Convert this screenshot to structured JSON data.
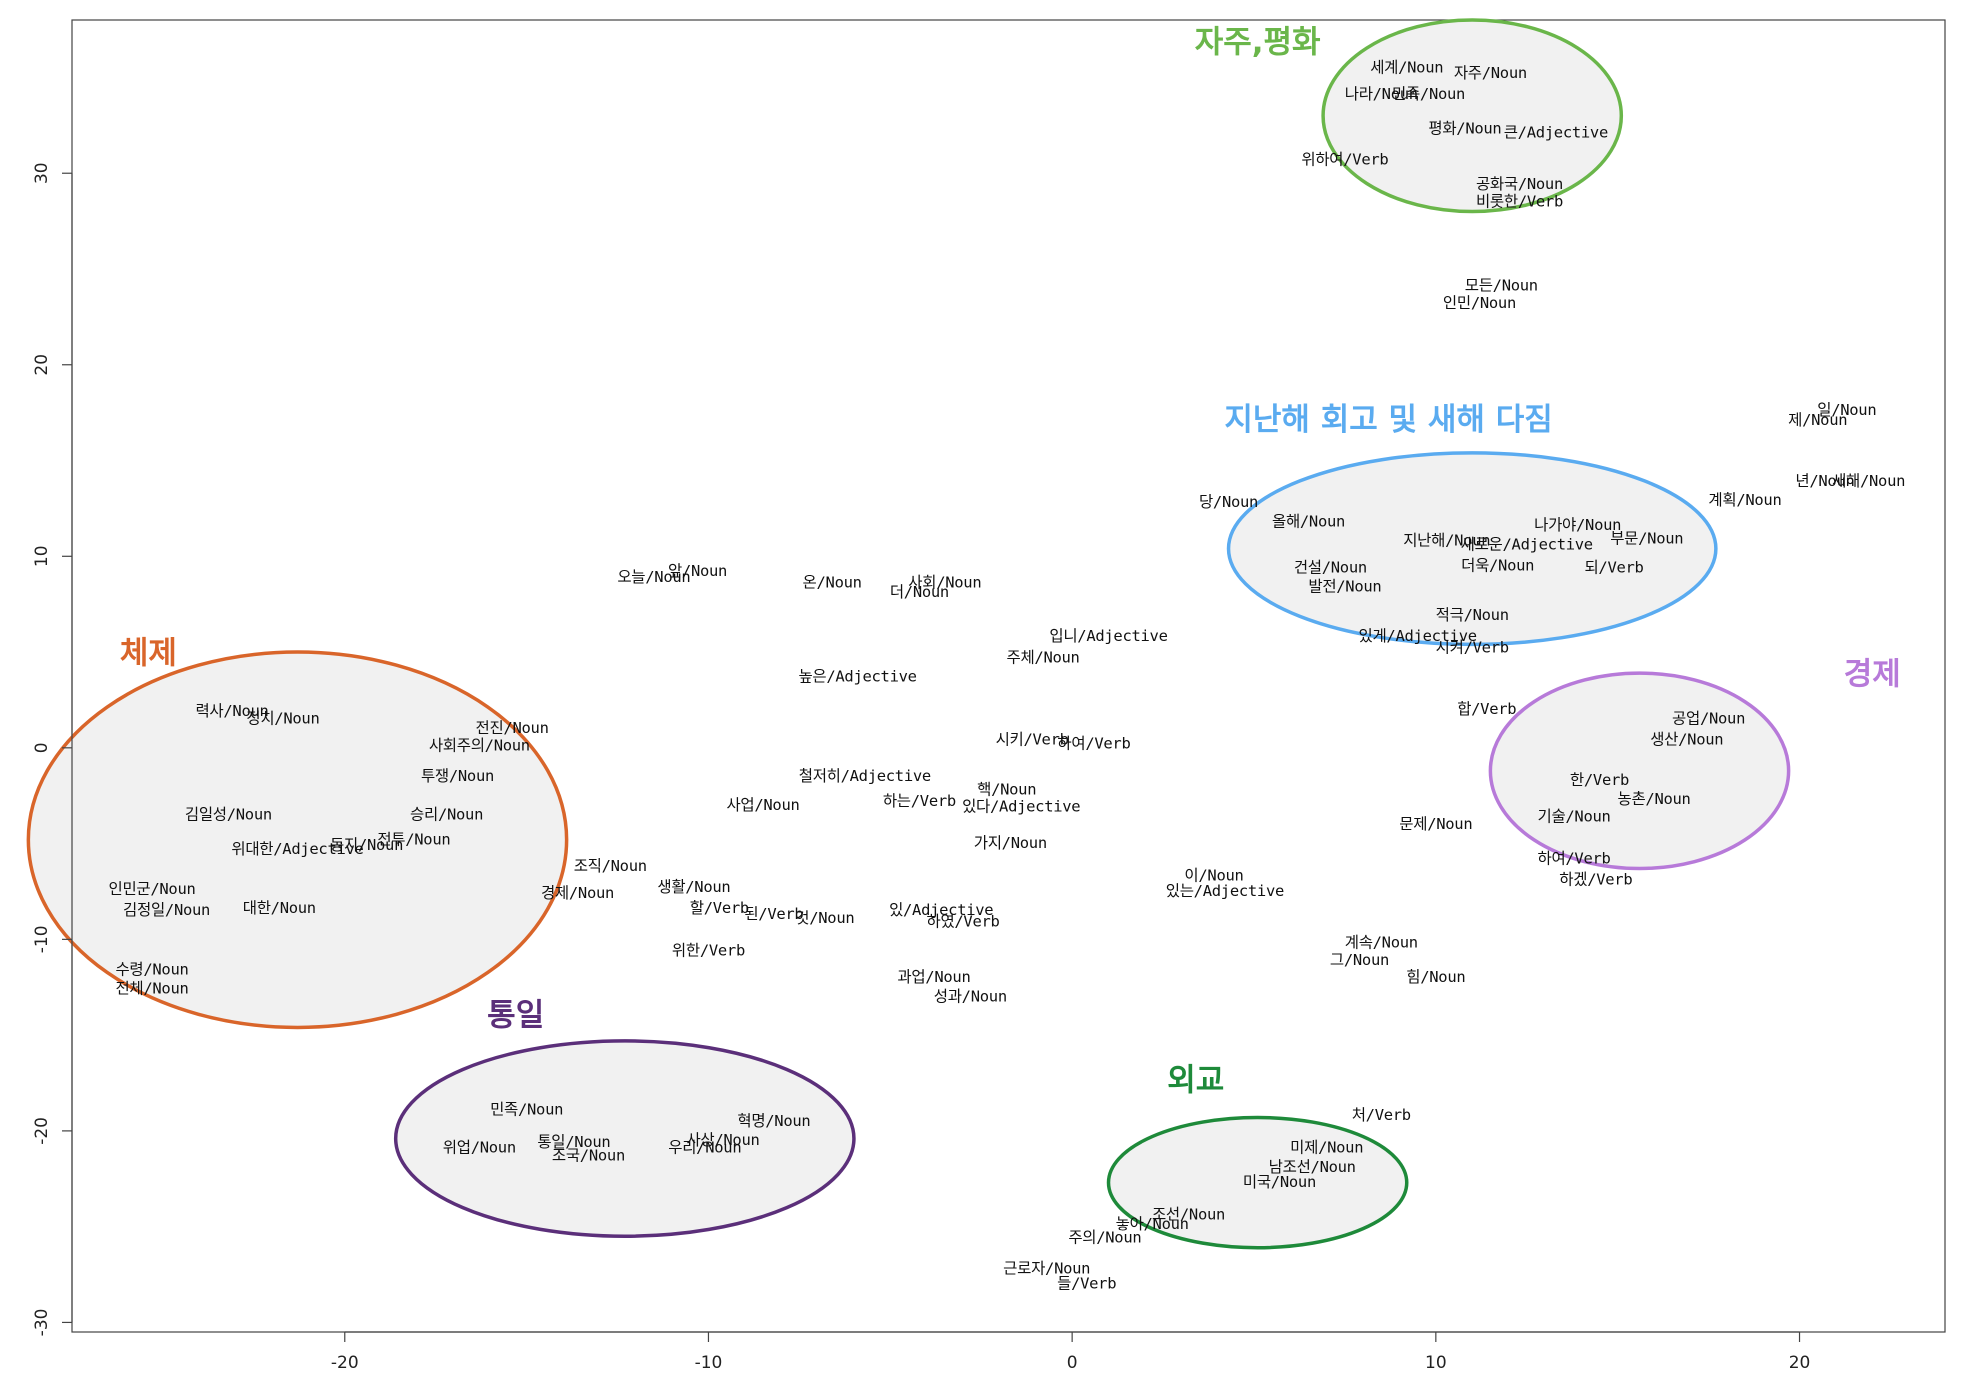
{
  "chart_data": {
    "type": "scatter",
    "title": "",
    "xlabel": "",
    "ylabel": "",
    "xlim": [
      -27.5,
      24
    ],
    "ylim": [
      -30.5,
      38
    ],
    "xticks": [
      -20,
      -10,
      0,
      10,
      20
    ],
    "yticks": [
      -30,
      -20,
      -10,
      0,
      10,
      20,
      30
    ],
    "grid": false,
    "clusters": [
      {
        "name": "자주,평화",
        "cx": 11.0,
        "cy": 33.0,
        "rx": 4.1,
        "ry": 5.0,
        "color": "#6ab64a",
        "label_x": 5.1,
        "label_y": 36.3
      },
      {
        "name": "지난해 회고 및 새해 다짐",
        "cx": 11.0,
        "cy": 10.4,
        "rx": 6.7,
        "ry": 5.0,
        "color": "#5aabf0",
        "label_x": 8.7,
        "label_y": 16.6
      },
      {
        "name": "체제",
        "cx": -21.3,
        "cy": -4.8,
        "rx": 7.4,
        "ry": 9.8,
        "color": "#d9652a",
        "label_x": -25.4,
        "label_y": 4.4
      },
      {
        "name": "경제",
        "cx": 15.6,
        "cy": -1.2,
        "rx": 4.1,
        "ry": 5.1,
        "color": "#b77ad9",
        "label_x": 22.0,
        "label_y": 3.3
      },
      {
        "name": "통일",
        "cx": -12.3,
        "cy": -20.4,
        "rx": 6.3,
        "ry": 5.1,
        "color": "#5b2f7a",
        "label_x": -15.3,
        "label_y": -14.5
      },
      {
        "name": "외교",
        "cx": 5.1,
        "cy": -22.7,
        "rx": 4.1,
        "ry": 3.4,
        "color": "#1e8a3a",
        "label_x": 3.4,
        "label_y": -17.9
      }
    ],
    "points": [
      {
        "label": "세계/Noun",
        "x": 9.2,
        "y": 35.5
      },
      {
        "label": "자주/Noun",
        "x": 11.5,
        "y": 35.2
      },
      {
        "label": "나라/Noun",
        "x": 8.5,
        "y": 34.1
      },
      {
        "label": "민족/Noun",
        "x": 9.8,
        "y": 34.1
      },
      {
        "label": "평화/Noun",
        "x": 10.8,
        "y": 32.3
      },
      {
        "label": "큰/Adjective",
        "x": 13.3,
        "y": 32.1
      },
      {
        "label": "위하여/Verb",
        "x": 7.5,
        "y": 30.7
      },
      {
        "label": "공화국/Noun",
        "x": 12.3,
        "y": 29.4
      },
      {
        "label": "비롯한/Verb",
        "x": 12.3,
        "y": 28.5
      },
      {
        "label": "모든/Noun",
        "x": 11.8,
        "y": 24.1
      },
      {
        "label": "인민/Noun",
        "x": 11.2,
        "y": 23.2
      },
      {
        "label": "일/Noun",
        "x": 21.3,
        "y": 17.6
      },
      {
        "label": "제/Noun",
        "x": 20.5,
        "y": 17.1
      },
      {
        "label": "년/Noun",
        "x": 20.7,
        "y": 13.9
      },
      {
        "label": "새해/Noun",
        "x": 21.9,
        "y": 13.9
      },
      {
        "label": "계획/Noun",
        "x": 18.5,
        "y": 12.9
      },
      {
        "label": "당/Noun",
        "x": 4.3,
        "y": 12.8
      },
      {
        "label": "올해/Noun",
        "x": 6.5,
        "y": 11.8
      },
      {
        "label": "나가야/Noun",
        "x": 13.9,
        "y": 11.6
      },
      {
        "label": "부문/Noun",
        "x": 15.8,
        "y": 10.9
      },
      {
        "label": "지난해/Noun",
        "x": 10.3,
        "y": 10.8
      },
      {
        "label": "새로운/Adjective",
        "x": 12.5,
        "y": 10.6
      },
      {
        "label": "건설/Noun",
        "x": 7.1,
        "y": 9.4
      },
      {
        "label": "더욱/Noun",
        "x": 11.7,
        "y": 9.5
      },
      {
        "label": "되/Verb",
        "x": 14.9,
        "y": 9.4
      },
      {
        "label": "발전/Noun",
        "x": 7.5,
        "y": 8.4
      },
      {
        "label": "적극/Noun",
        "x": 11.0,
        "y": 6.9
      },
      {
        "label": "있게/Adjective",
        "x": 9.5,
        "y": 5.8
      },
      {
        "label": "시켜/Verb",
        "x": 11.0,
        "y": 5.2
      },
      {
        "label": "오늘/Noun",
        "x": -11.5,
        "y": 8.9
      },
      {
        "label": "앞/Noun",
        "x": -10.3,
        "y": 9.2
      },
      {
        "label": "온/Noun",
        "x": -6.6,
        "y": 8.6
      },
      {
        "label": "사회/Noun",
        "x": -3.5,
        "y": 8.6
      },
      {
        "label": "더/Noun",
        "x": -4.2,
        "y": 8.1
      },
      {
        "label": "입니/Adjective",
        "x": 1.0,
        "y": 5.8
      },
      {
        "label": "주체/Noun",
        "x": -0.8,
        "y": 4.7
      },
      {
        "label": "높은/Adjective",
        "x": -5.9,
        "y": 3.7
      },
      {
        "label": "합/Verb",
        "x": 11.4,
        "y": 2.0
      },
      {
        "label": "공업/Noun",
        "x": 17.5,
        "y": 1.5
      },
      {
        "label": "생산/Noun",
        "x": 16.9,
        "y": 0.4
      },
      {
        "label": "한/Verb",
        "x": 14.5,
        "y": -1.7
      },
      {
        "label": "농촌/Noun",
        "x": 16.0,
        "y": -2.7
      },
      {
        "label": "기술/Noun",
        "x": 13.8,
        "y": -3.6
      },
      {
        "label": "하여/Verb",
        "x": 13.8,
        "y": -5.8
      },
      {
        "label": "하겠/Verb",
        "x": 14.4,
        "y": -6.9
      },
      {
        "label": "문제/Noun",
        "x": 10.0,
        "y": -4.0
      },
      {
        "label": "시키/Verb",
        "x": -1.1,
        "y": 0.4
      },
      {
        "label": "하여/Verb",
        "x": 0.6,
        "y": 0.2
      },
      {
        "label": "철저히/Adjective",
        "x": -5.7,
        "y": -1.5
      },
      {
        "label": "핵/Noun",
        "x": -1.8,
        "y": -2.2
      },
      {
        "label": "하는/Verb",
        "x": -4.2,
        "y": -2.8
      },
      {
        "label": "있다/Adjective",
        "x": -1.4,
        "y": -3.1
      },
      {
        "label": "사업/Noun",
        "x": -8.5,
        "y": -3.0
      },
      {
        "label": "가지/Noun",
        "x": -1.7,
        "y": -5.0
      },
      {
        "label": "이/Noun",
        "x": 3.9,
        "y": -6.7
      },
      {
        "label": "있는/Adjective",
        "x": 4.2,
        "y": -7.5
      },
      {
        "label": "조직/Noun",
        "x": -12.7,
        "y": -6.2
      },
      {
        "label": "경제/Noun",
        "x": -13.6,
        "y": -7.6
      },
      {
        "label": "생활/Noun",
        "x": -10.4,
        "y": -7.3
      },
      {
        "label": "할/Verb",
        "x": -9.7,
        "y": -8.4
      },
      {
        "label": "된/Verb",
        "x": -8.2,
        "y": -8.7
      },
      {
        "label": "것/Noun",
        "x": -6.8,
        "y": -8.9
      },
      {
        "label": "있/Adjective",
        "x": -3.6,
        "y": -8.5
      },
      {
        "label": "하였/Verb",
        "x": -3.0,
        "y": -9.1
      },
      {
        "label": "위한/Verb",
        "x": -10.0,
        "y": -10.6
      },
      {
        "label": "과업/Noun",
        "x": -3.8,
        "y": -12.0
      },
      {
        "label": "성과/Noun",
        "x": -2.8,
        "y": -13.0
      },
      {
        "label": "계속/Noun",
        "x": 8.5,
        "y": -10.2
      },
      {
        "label": "그/Noun",
        "x": 7.9,
        "y": -11.1
      },
      {
        "label": "힘/Noun",
        "x": 10.0,
        "y": -12.0
      },
      {
        "label": "력사/Noun",
        "x": -23.1,
        "y": 1.9
      },
      {
        "label": "정치/Noun",
        "x": -21.7,
        "y": 1.5
      },
      {
        "label": "전진/Noun",
        "x": -15.4,
        "y": 1.0
      },
      {
        "label": "사회주의/Noun",
        "x": -16.3,
        "y": 0.1
      },
      {
        "label": "투쟁/Noun",
        "x": -16.9,
        "y": -1.5
      },
      {
        "label": "김일성/Noun",
        "x": -23.2,
        "y": -3.5
      },
      {
        "label": "승리/Noun",
        "x": -17.2,
        "y": -3.5
      },
      {
        "label": "위대한/Adjective",
        "x": -21.3,
        "y": -5.3
      },
      {
        "label": "동지/Noun",
        "x": -19.4,
        "y": -5.1
      },
      {
        "label": "전투/Noun",
        "x": -18.1,
        "y": -4.8
      },
      {
        "label": "인민군/Noun",
        "x": -25.3,
        "y": -7.4
      },
      {
        "label": "김정일/Noun",
        "x": -24.9,
        "y": -8.5
      },
      {
        "label": "대한/Noun",
        "x": -21.8,
        "y": -8.4
      },
      {
        "label": "수령/Noun",
        "x": -25.3,
        "y": -11.6
      },
      {
        "label": "전체/Noun",
        "x": -25.3,
        "y": -12.6
      },
      {
        "label": "민족/Noun",
        "x": -15.0,
        "y": -18.9
      },
      {
        "label": "혁명/Noun",
        "x": -8.2,
        "y": -19.5
      },
      {
        "label": "사상/Noun",
        "x": -9.6,
        "y": -20.5
      },
      {
        "label": "위업/Noun",
        "x": -16.3,
        "y": -20.9
      },
      {
        "label": "통일/Noun",
        "x": -13.7,
        "y": -20.6
      },
      {
        "label": "조국/Noun",
        "x": -13.3,
        "y": -21.3
      },
      {
        "label": "우리/Noun",
        "x": -10.1,
        "y": -20.9
      },
      {
        "label": "처/Verb",
        "x": 8.5,
        "y": -19.2
      },
      {
        "label": "미제/Noun",
        "x": 7.0,
        "y": -20.9
      },
      {
        "label": "남조선/Noun",
        "x": 6.6,
        "y": -21.9
      },
      {
        "label": "미국/Noun",
        "x": 5.7,
        "y": -22.7
      },
      {
        "label": "조선/Noun",
        "x": 3.2,
        "y": -24.4
      },
      {
        "label": "놓아/Noun",
        "x": 2.2,
        "y": -24.9
      },
      {
        "label": "주의/Noun",
        "x": 0.9,
        "y": -25.6
      },
      {
        "label": "근로자/Noun",
        "x": -0.7,
        "y": -27.2
      },
      {
        "label": "들/Verb",
        "x": 0.4,
        "y": -28.0
      }
    ]
  }
}
